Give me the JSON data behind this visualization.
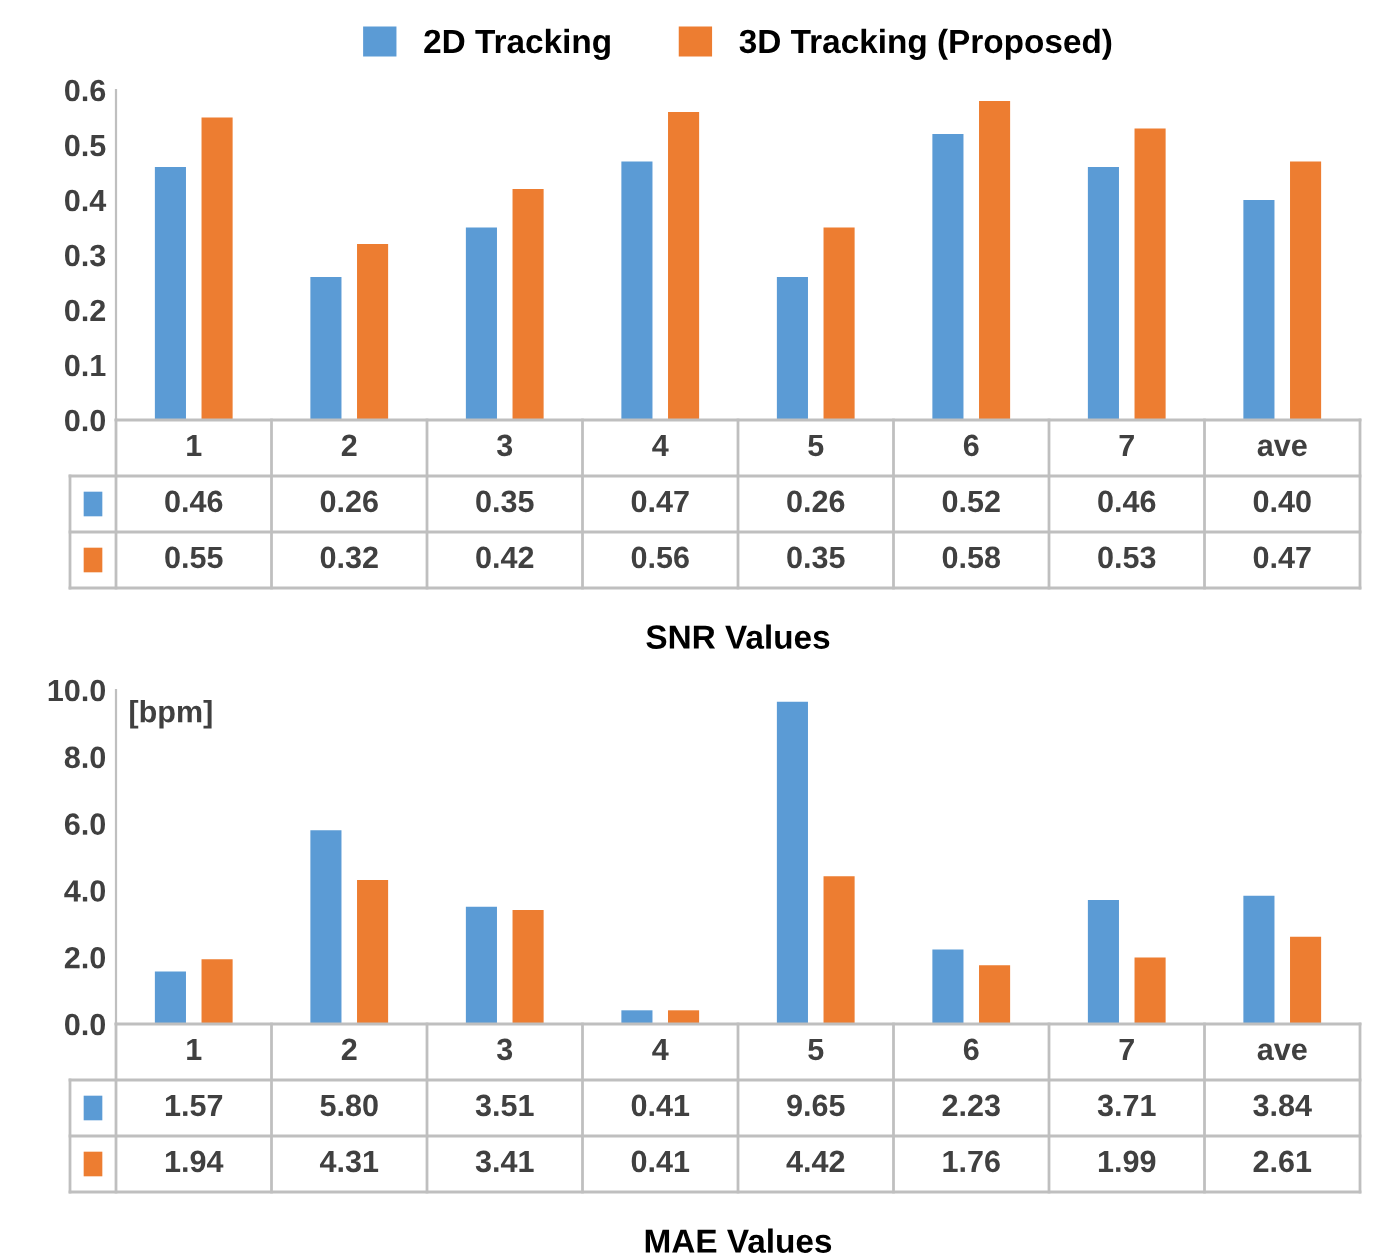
{
  "chart_data": [
    {
      "type": "bar",
      "title": "SNR Values",
      "categories": [
        "1",
        "2",
        "3",
        "4",
        "5",
        "6",
        "7",
        "ave"
      ],
      "series": [
        {
          "name": "2D Tracking",
          "color": "#5b9bd5",
          "values": [
            0.46,
            0.26,
            0.35,
            0.47,
            0.26,
            0.52,
            0.46,
            0.4
          ],
          "value_labels": [
            "0.46",
            "0.26",
            "0.35",
            "0.47",
            "0.26",
            "0.52",
            "0.46",
            "0.40"
          ]
        },
        {
          "name": "3D Tracking (Proposed)",
          "color": "#ed7d31",
          "values": [
            0.55,
            0.32,
            0.42,
            0.56,
            0.35,
            0.58,
            0.53,
            0.47
          ],
          "value_labels": [
            "0.55",
            "0.32",
            "0.42",
            "0.56",
            "0.35",
            "0.58",
            "0.53",
            "0.47"
          ]
        }
      ],
      "ylim": [
        0,
        0.6
      ],
      "yticks": [
        {
          "value": 0,
          "label": "0.0"
        },
        0.1,
        0.2,
        0.3,
        0.4,
        0.5,
        0.6
      ],
      "grid": false,
      "legend": "top"
    },
    {
      "type": "bar",
      "title": "MAE Values",
      "ylabel": "[bpm]",
      "categories": [
        "1",
        "2",
        "3",
        "4",
        "5",
        "6",
        "7",
        "ave"
      ],
      "series": [
        {
          "color": "#5b9bd5",
          "values": [
            1.57,
            5.8,
            3.51,
            0.41,
            9.65,
            2.23,
            3.71,
            3.84
          ],
          "value_labels": [
            "1.57",
            "5.80",
            "3.51",
            "0.41",
            "9.65",
            "2.23",
            "3.71",
            "3.84"
          ]
        },
        {
          "color": "#ed7d31",
          "values": [
            1.94,
            4.31,
            3.41,
            0.41,
            4.42,
            1.76,
            1.99,
            2.61
          ],
          "value_labels": [
            "1.94",
            "4.31",
            "3.41",
            "0.41",
            "4.42",
            "1.76",
            "1.99",
            "2.61"
          ]
        }
      ],
      "ylim": [
        0,
        10
      ],
      "yticks": [
        {
          "value": 0,
          "label": "0.0"
        },
        {
          "value": 2,
          "label": "2.0"
        },
        {
          "value": 4,
          "label": "4.0"
        },
        {
          "value": 6,
          "label": "6.0"
        },
        {
          "value": 8,
          "label": "8.0"
        },
        {
          "value": 10,
          "label": "10.0"
        }
      ],
      "grid": false,
      "legend": false
    }
  ]
}
